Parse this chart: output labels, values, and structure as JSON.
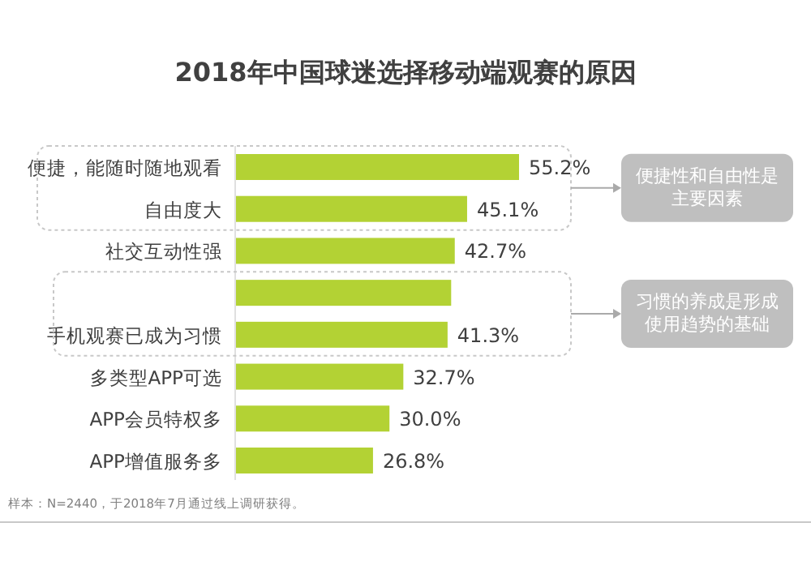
{
  "chart_data": {
    "type": "bar",
    "orientation": "horizontal",
    "title": "2018年中国球迷选择移动端观赛的原因",
    "categories": [
      "便捷，能随时随地观看",
      "自由度大",
      "社交互动性强",
      null,
      "手机观赛已成为习惯",
      "多类型APP可选",
      "APP会员特权多",
      "APP增值服务多"
    ],
    "values": [
      55.2,
      45.1,
      42.7,
      42.0,
      41.3,
      32.7,
      30.0,
      26.8
    ],
    "value_labels": [
      "55.2%",
      "45.1%",
      "42.7%",
      null,
      "41.3%",
      "32.7%",
      "30.0%",
      "26.8%"
    ],
    "color": "#b3d234",
    "annotations": [
      "便捷性和自由性是主要因素",
      "习惯的养成是形成使用趋势的基础",
      "样本：N=2440，于2018年7月通过线上调研获得。"
    ]
  }
}
